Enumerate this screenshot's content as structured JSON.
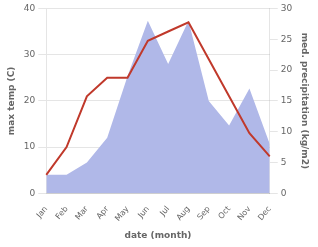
{
  "chart_data": {
    "type": "line",
    "categories": [
      "Jan",
      "Feb",
      "Mar",
      "Apr",
      "May",
      "Jun",
      "Jul",
      "Aug",
      "Sep",
      "Oct",
      "Nov",
      "Dec"
    ],
    "xlabel": "date (month)",
    "ylabel": "max temp (C)",
    "y2label": "med. precipitation (kg/m2)",
    "ylim": [
      0,
      40
    ],
    "yticks": [
      0,
      10,
      20,
      30,
      40
    ],
    "y2lim": [
      0,
      30
    ],
    "y2ticks": [
      0,
      5,
      10,
      15,
      20,
      25,
      30
    ],
    "grid": true,
    "series": [
      {
        "type": "area",
        "color": "#b0b8e8",
        "axis": "y2",
        "values": [
          3,
          3,
          5,
          9,
          19,
          28,
          21,
          28,
          15,
          11,
          17,
          8
        ]
      },
      {
        "type": "line",
        "color": "#c0392b",
        "values": [
          4,
          10,
          21,
          25,
          25,
          33,
          35,
          37,
          29,
          21,
          13,
          8
        ]
      }
    ]
  }
}
